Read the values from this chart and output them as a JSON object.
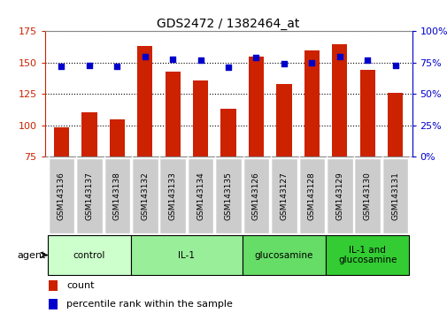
{
  "title": "GDS2472 / 1382464_at",
  "categories": [
    "GSM143136",
    "GSM143137",
    "GSM143138",
    "GSM143132",
    "GSM143133",
    "GSM143134",
    "GSM143135",
    "GSM143126",
    "GSM143127",
    "GSM143128",
    "GSM143129",
    "GSM143130",
    "GSM143131"
  ],
  "counts": [
    98,
    110,
    105,
    163,
    143,
    136,
    113,
    155,
    133,
    160,
    165,
    144,
    126
  ],
  "percentiles": [
    72,
    73,
    72,
    80,
    78,
    77,
    71,
    79,
    74,
    75,
    80,
    77,
    73
  ],
  "groups": [
    {
      "label": "control",
      "start": 0,
      "end": 3,
      "color": "#ccffcc"
    },
    {
      "label": "IL-1",
      "start": 3,
      "end": 7,
      "color": "#99ee99"
    },
    {
      "label": "glucosamine",
      "start": 7,
      "end": 10,
      "color": "#66dd66"
    },
    {
      "label": "IL-1 and\nglucosamine",
      "start": 10,
      "end": 13,
      "color": "#33cc33"
    }
  ],
  "bar_color": "#cc2200",
  "dot_color": "#0000cc",
  "ylim_left": [
    75,
    175
  ],
  "ylim_right": [
    0,
    100
  ],
  "yticks_left": [
    75,
    100,
    125,
    150,
    175
  ],
  "yticks_right": [
    0,
    25,
    50,
    75,
    100
  ],
  "left_axis_color": "#cc2200",
  "right_axis_color": "#0000cc",
  "gsm_box_color": "#cccccc",
  "group_colors": [
    "#ccffcc",
    "#99ee99",
    "#66dd66",
    "#33cc33"
  ]
}
